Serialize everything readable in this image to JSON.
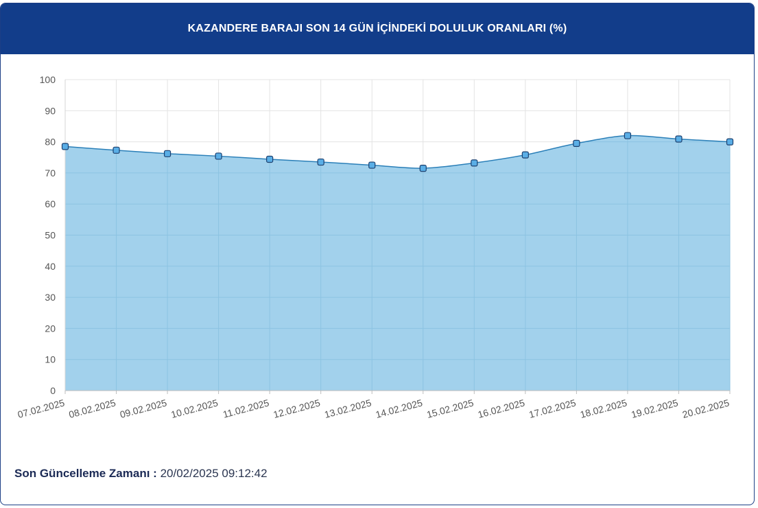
{
  "header": {
    "title": "KAZANDERE BARAJI SON 14 GÜN İÇİNDEKİ DOLULUK ORANLARI (%)"
  },
  "colors": {
    "header_bg": "#123d8a",
    "line": "#2a7fb8",
    "area": "#9dcfeb",
    "marker_fill": "#5aaee6",
    "marker_stroke": "#1b3f6e",
    "grid": "#e3e3e3"
  },
  "chart_data": {
    "type": "area",
    "title": "KAZANDERE BARAJI SON 14 GÜN İÇİNDEKİ DOLULUK ORANLARI (%)",
    "xlabel": "",
    "ylabel": "",
    "ylim": [
      0,
      100
    ],
    "yticks": [
      0,
      10,
      20,
      30,
      40,
      50,
      60,
      70,
      80,
      90,
      100
    ],
    "grid": true,
    "legend": "none",
    "categories": [
      "07.02.2025",
      "08.02.2025",
      "09.02.2025",
      "10.02.2025",
      "11.02.2025",
      "12.02.2025",
      "13.02.2025",
      "14.02.2025",
      "15.02.2025",
      "16.02.2025",
      "17.02.2025",
      "18.02.2025",
      "19.02.2025",
      "20.02.2025"
    ],
    "values": [
      78.5,
      77.3,
      76.2,
      75.4,
      74.4,
      73.5,
      72.5,
      71.5,
      73.2,
      75.8,
      79.5,
      82.0,
      80.9,
      80.0
    ]
  },
  "footer": {
    "label": "Son Güncelleme Zamanı",
    "separator": " : ",
    "value": "20/02/2025 09:12:42"
  }
}
